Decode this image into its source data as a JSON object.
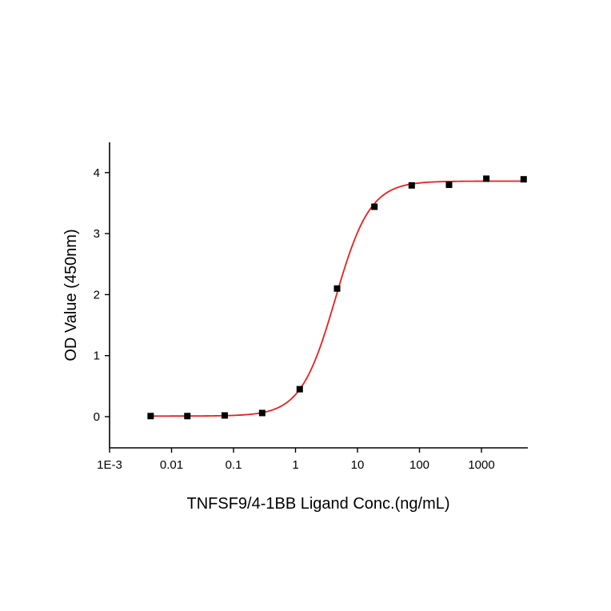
{
  "chart_data": {
    "type": "scatter",
    "title": "",
    "xlabel": "TNFSF9/4-1BB Ligand Conc.(ng/mL)",
    "ylabel": "OD Value (450nm)",
    "xscale": "log",
    "xlim": [
      0.001,
      5000
    ],
    "ylim": [
      -0.5,
      4.5
    ],
    "xticks": [
      0.001,
      0.01,
      0.1,
      1,
      10,
      100,
      1000
    ],
    "xtick_labels": [
      "1E-3",
      "0.01",
      "0.1",
      "1",
      "10",
      "100",
      "1000"
    ],
    "yticks": [
      0,
      1,
      2,
      3,
      4
    ],
    "ytick_labels": [
      "0",
      "1",
      "2",
      "3",
      "4"
    ],
    "grid": false,
    "legend": "none",
    "series": [
      {
        "kind": "points",
        "marker": "square",
        "color": "#000000",
        "x": [
          0.0046,
          0.018,
          0.072,
          0.29,
          1.17,
          4.69,
          18.75,
          75,
          300,
          1200,
          4800
        ],
        "y": [
          0.01,
          0.01,
          0.02,
          0.06,
          0.45,
          2.1,
          3.44,
          3.79,
          3.8,
          3.9,
          3.89
        ]
      },
      {
        "kind": "fit",
        "color": "#e8201f",
        "model": "4PL",
        "bottom": 0.01,
        "top": 3.86,
        "ec50": 4.4,
        "hill": 1.55
      }
    ]
  }
}
